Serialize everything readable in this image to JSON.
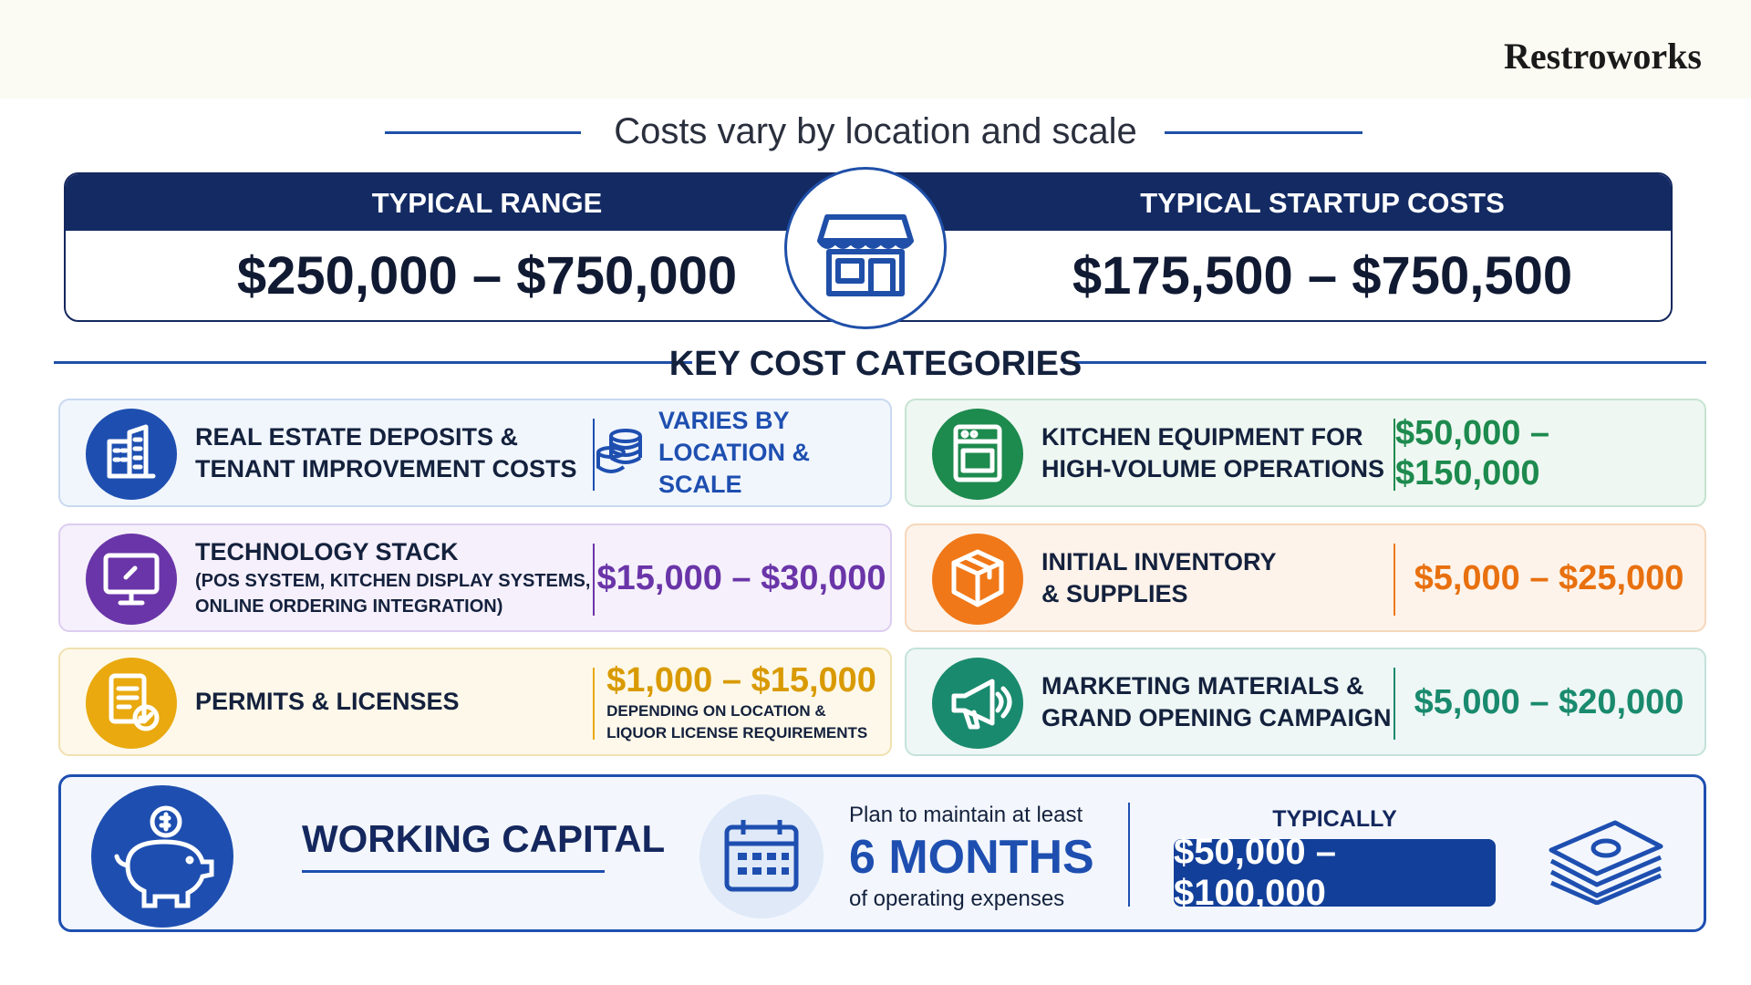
{
  "brand": "Restroworks",
  "header": {
    "title": "Costs vary by location and scale"
  },
  "summary": [
    {
      "label": "TYPICAL RANGE",
      "value": "$250,000 – $750,000"
    },
    {
      "label": "TYPICAL STARTUP COSTS",
      "value": "$175,500 – $750,500"
    }
  ],
  "categories_title": "KEY COST CATEGORIES",
  "categories": [
    {
      "title": [
        "REAL ESTATE DEPOSITS &",
        "TENANT IMPROVEMENT COSTS"
      ],
      "amount": [
        "VARIES BY",
        "LOCATION & SCALE"
      ]
    },
    {
      "title": [
        "KITCHEN EQUIPMENT FOR",
        "HIGH-VOLUME OPERATIONS"
      ],
      "amount": [
        "$50,000 – $150,000"
      ]
    },
    {
      "title": [
        "TECHNOLOGY STACK"
      ],
      "detail": [
        "(POS SYSTEM, KITCHEN DISPLAY SYSTEMS,",
        "ONLINE ORDERING INTEGRATION)"
      ],
      "amount": [
        "$15,000 – $30,000"
      ]
    },
    {
      "title": [
        "INITIAL INVENTORY",
        "& SUPPLIES"
      ],
      "amount": [
        "$5,000 – $25,000"
      ]
    },
    {
      "title": [
        "PERMITS & LICENSES"
      ],
      "amount": [
        "$1,000 – $15,000"
      ],
      "note": [
        "DEPENDING ON LOCATION &",
        "LIQUOR LICENSE REQUIREMENTS"
      ]
    },
    {
      "title": [
        "MARKETING MATERIALS &",
        "GRAND OPENING CAMPAIGN"
      ],
      "amount": [
        "$5,000 – $20,000"
      ]
    }
  ],
  "working_capital": {
    "title": "WORKING CAPITAL",
    "plan_prefix": "Plan to maintain at least",
    "duration": "6 MONTHS",
    "plan_suffix": "of operating expenses",
    "typical_label": "TYPICALLY",
    "amount": "$50,000 – $100,000"
  }
}
